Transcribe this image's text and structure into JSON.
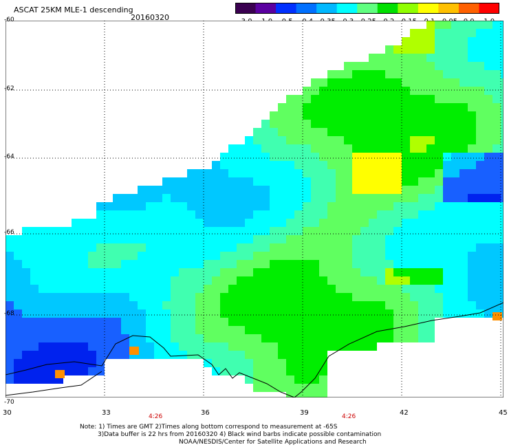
{
  "header": {
    "title": "ASCAT 25KM MLE-1 descending",
    "date": "20160320"
  },
  "colorbar": {
    "labels": [
      "-3.0",
      "-1.0",
      "-0.5",
      "-0.4",
      "-0.35",
      "-0.3",
      "-0.25",
      "-0.2",
      "-0.15",
      "-0.1",
      "-0.05",
      "0.0",
      "1.0"
    ],
    "colors": [
      "#3a0050",
      "#5a00a0",
      "#0030ff",
      "#0070ff",
      "#00b8ff",
      "#00ffff",
      "#60ff80",
      "#00e000",
      "#90ff00",
      "#ffff00",
      "#ffc000",
      "#ff6000",
      "#ff0000"
    ]
  },
  "map": {
    "lat_labels": [
      "-60",
      "-62",
      "-64",
      "-66",
      "-68",
      "-70"
    ],
    "lon_labels": [
      "30",
      "33",
      "36",
      "39",
      "42",
      "45"
    ],
    "time_labels": [
      "4:26",
      "4:26"
    ],
    "palette": {
      "deep_blue": "#0022ee",
      "blue": "#1860ff",
      "light_blue": "#00c8ff",
      "cyan": "#00ffff",
      "aqua_green": "#40ffb0",
      "light_green": "#60ff60",
      "green": "#00ee00",
      "yellow_green": "#b0ff00",
      "yellow": "#ffff00",
      "orange": "#ff9000"
    }
  },
  "footer": {
    "line1": "Note: 1) Times are GMT 2)Times along bottom correspond to measurement at -65S",
    "line2": "3)Data buffer is 22 hrs from 20160320 4) Black wind barbs indicate possible contamination",
    "line3": "NOAA/NESDIS/Center for Satellite Applications and Research"
  }
}
